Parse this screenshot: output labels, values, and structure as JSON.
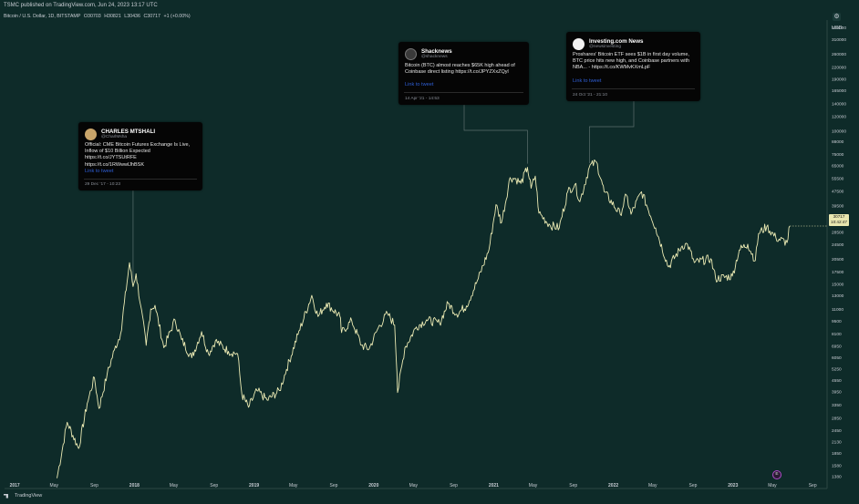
{
  "header": {
    "published": "TSMC published on TradingView.com, Jun 24, 2023 13:17 UTC",
    "symbol": "Bitcoin / U.S. Dollar, 1D, BITSTAMP",
    "ohlc": [
      "O30703",
      "H30821",
      "L30436",
      "C30717",
      "+1 (+0.00%)"
    ]
  },
  "price_axis": {
    "unit": "USD"
  },
  "price_tag": {
    "price": "30717",
    "time": "10:42:47"
  },
  "footer": {
    "brand": "TradingView"
  },
  "event_marker": {
    "label": "E"
  },
  "tweets": [
    {
      "name": "CHARLES  MTSHALI",
      "handle": "@CharlMsha",
      "text": "Official: CME Bitcoin Futures Exchange Is Live, Inflow of $10 Billion Expected https://t.co/JYTSUtRFE https://t.co/1RWwwlJhBSK",
      "link": "Link to tweet",
      "date": "29 Dec '17 - 10:23",
      "avatar_color": "#c9a56a"
    },
    {
      "name": "Shacknews",
      "handle": "@shacknews",
      "text": "Bitcoin (BTC) almost reaches $65K high ahead of Coinbase direct listing https://t.co/JPYZXxZQyl",
      "link": "Link to tweet",
      "date": "14 Apr '21 - 14:53",
      "avatar_color": "#3a3a3a"
    },
    {
      "name": "Investing.com News",
      "handle": "@newsinvesting",
      "text": "Proshares' Bitcoin ETF sees $1B in first day volume, BTC price hits new high, and Coinbase partners with NBA... - https://t.co/KWMvKXmLpF",
      "link": "Link to tweet",
      "date": "24 Oct '21 - 21:10",
      "avatar_color": "#f2f2f2"
    }
  ],
  "chart_data": {
    "type": "line",
    "title": "",
    "xlabel": "",
    "ylabel": "USD",
    "y_scale": "log",
    "ylim": [
      1300,
      360000
    ],
    "xlim": [
      "2016-12-01",
      "2023-10-15"
    ],
    "grid": false,
    "y_ticks": [
      360000,
      310000,
      260000,
      220000,
      190000,
      165000,
      140000,
      120000,
      100000,
      88000,
      75000,
      65000,
      55500,
      47500,
      39500,
      33500,
      28500,
      24500,
      20500,
      17500,
      15000,
      13000,
      11000,
      9500,
      8100,
      6950,
      6050,
      5250,
      4550,
      3950,
      3350,
      2850,
      2450,
      2130,
      1850,
      1580,
      1380
    ],
    "x_ticks": [
      {
        "label": "2017",
        "date": "2017-01-01"
      },
      {
        "label": "May",
        "date": "2017-05-01"
      },
      {
        "label": "Sep",
        "date": "2017-09-01"
      },
      {
        "label": "2018",
        "date": "2018-01-01"
      },
      {
        "label": "May",
        "date": "2018-05-01"
      },
      {
        "label": "Sep",
        "date": "2018-09-01"
      },
      {
        "label": "2019",
        "date": "2019-01-01"
      },
      {
        "label": "May",
        "date": "2019-05-01"
      },
      {
        "label": "Sep",
        "date": "2019-09-01"
      },
      {
        "label": "2020",
        "date": "2020-01-01"
      },
      {
        "label": "May",
        "date": "2020-05-01"
      },
      {
        "label": "Sep",
        "date": "2020-09-01"
      },
      {
        "label": "2021",
        "date": "2021-01-01"
      },
      {
        "label": "May",
        "date": "2021-05-01"
      },
      {
        "label": "Sep",
        "date": "2021-09-01"
      },
      {
        "label": "2022",
        "date": "2022-01-01"
      },
      {
        "label": "May",
        "date": "2022-05-01"
      },
      {
        "label": "Sep",
        "date": "2022-09-01"
      },
      {
        "label": "2023",
        "date": "2023-01-01"
      },
      {
        "label": "May",
        "date": "2023-05-01"
      },
      {
        "label": "Sep",
        "date": "2023-09-01"
      }
    ],
    "series": [
      {
        "color": "#ecebb4",
        "points": [
          [
            "2017-05-10",
            1350
          ],
          [
            "2017-06-10",
            2700
          ],
          [
            "2017-07-15",
            1950
          ],
          [
            "2017-08-10",
            3400
          ],
          [
            "2017-09-01",
            4700
          ],
          [
            "2017-09-15",
            3200
          ],
          [
            "2017-10-10",
            4900
          ],
          [
            "2017-11-01",
            6600
          ],
          [
            "2017-11-20",
            8100
          ],
          [
            "2017-12-10",
            15500
          ],
          [
            "2017-12-17",
            19500
          ],
          [
            "2017-12-28",
            14500
          ],
          [
            "2018-01-06",
            17000
          ],
          [
            "2018-01-20",
            11500
          ],
          [
            "2018-02-06",
            7000
          ],
          [
            "2018-02-20",
            11000
          ],
          [
            "2018-03-05",
            11500
          ],
          [
            "2018-04-01",
            6800
          ],
          [
            "2018-05-05",
            9600
          ],
          [
            "2018-05-25",
            7500
          ],
          [
            "2018-06-25",
            6000
          ],
          [
            "2018-07-25",
            8300
          ],
          [
            "2018-08-15",
            6300
          ],
          [
            "2018-09-05",
            7400
          ],
          [
            "2018-10-15",
            6500
          ],
          [
            "2018-11-12",
            6300
          ],
          [
            "2018-11-25",
            3800
          ],
          [
            "2018-12-15",
            3250
          ],
          [
            "2019-01-10",
            4000
          ],
          [
            "2019-02-10",
            3550
          ],
          [
            "2019-03-20",
            4000
          ],
          [
            "2019-04-10",
            5200
          ],
          [
            "2019-05-15",
            8000
          ],
          [
            "2019-06-26",
            13000
          ],
          [
            "2019-07-15",
            10000
          ],
          [
            "2019-08-10",
            11800
          ],
          [
            "2019-09-20",
            10000
          ],
          [
            "2019-09-25",
            8200
          ],
          [
            "2019-10-26",
            9500
          ],
          [
            "2019-11-25",
            7000
          ],
          [
            "2019-12-18",
            6700
          ],
          [
            "2020-01-15",
            8700
          ],
          [
            "2020-02-12",
            10400
          ],
          [
            "2020-03-05",
            9000
          ],
          [
            "2020-03-12",
            5000
          ],
          [
            "2020-03-14",
            3900
          ],
          [
            "2020-04-05",
            6800
          ],
          [
            "2020-05-10",
            8800
          ],
          [
            "2020-06-10",
            9600
          ],
          [
            "2020-07-20",
            9200
          ],
          [
            "2020-08-15",
            11800
          ],
          [
            "2020-09-10",
            10300
          ],
          [
            "2020-10-10",
            11400
          ],
          [
            "2020-11-15",
            16000
          ],
          [
            "2020-12-18",
            23000
          ],
          [
            "2021-01-08",
            40000
          ],
          [
            "2021-01-25",
            32000
          ],
          [
            "2021-02-20",
            56000
          ],
          [
            "2021-03-10",
            55000
          ],
          [
            "2021-03-25",
            52000
          ],
          [
            "2021-04-14",
            63500
          ],
          [
            "2021-04-25",
            49000
          ],
          [
            "2021-05-08",
            57000
          ],
          [
            "2021-05-19",
            36000
          ],
          [
            "2021-06-22",
            31000
          ],
          [
            "2021-07-20",
            30000
          ],
          [
            "2021-08-15",
            47000
          ],
          [
            "2021-09-06",
            51500
          ],
          [
            "2021-09-21",
            41500
          ],
          [
            "2021-10-20",
            64000
          ],
          [
            "2021-11-10",
            68000
          ],
          [
            "2021-11-26",
            54000
          ],
          [
            "2021-12-04",
            47000
          ],
          [
            "2022-01-22",
            35500
          ],
          [
            "2022-02-10",
            45000
          ],
          [
            "2022-02-24",
            35500
          ],
          [
            "2022-03-28",
            47000
          ],
          [
            "2022-05-10",
            30000
          ],
          [
            "2022-06-18",
            18500
          ],
          [
            "2022-07-30",
            24000
          ],
          [
            "2022-08-15",
            24500
          ],
          [
            "2022-09-05",
            19500
          ],
          [
            "2022-10-25",
            20500
          ],
          [
            "2022-11-09",
            16000
          ],
          [
            "2022-12-30",
            16500
          ],
          [
            "2023-01-20",
            22800
          ],
          [
            "2023-02-15",
            24500
          ],
          [
            "2023-03-10",
            20000
          ],
          [
            "2023-03-20",
            28000
          ],
          [
            "2023-04-14",
            30500
          ],
          [
            "2023-05-12",
            26500
          ],
          [
            "2023-06-15",
            25000
          ],
          [
            "2023-06-23",
            30700
          ]
        ]
      }
    ],
    "annotations": [
      {
        "tweet": 0,
        "date": "2017-12-29"
      },
      {
        "tweet": 1,
        "date": "2021-04-14"
      },
      {
        "tweet": 2,
        "date": "2021-10-24"
      }
    ]
  }
}
